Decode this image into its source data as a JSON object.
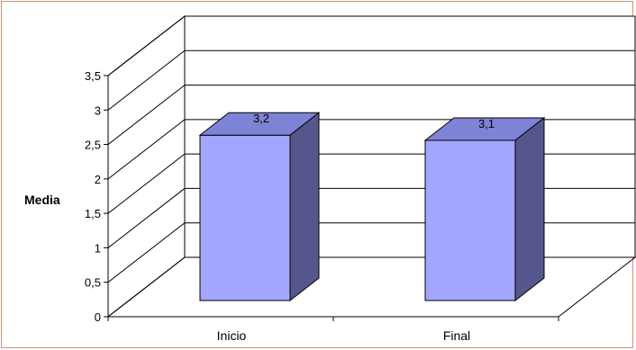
{
  "chart_data": {
    "type": "bar",
    "categories": [
      "Inicio",
      "Final"
    ],
    "values": [
      3.2,
      3.1
    ],
    "data_labels": [
      "3,2",
      "3,1"
    ],
    "ylabel": "Media",
    "ylim": [
      0,
      3.5
    ],
    "yticks": [
      "0",
      "0,5",
      "1",
      "1,5",
      "2",
      "2,5",
      "3",
      "3,5"
    ],
    "grid": true,
    "three_d": true,
    "colors": {
      "bar_front": "#a3a6ff",
      "bar_top": "#7f83d6",
      "bar_side": "#55578c",
      "grid": "#000000",
      "border": "#c8957c"
    }
  }
}
